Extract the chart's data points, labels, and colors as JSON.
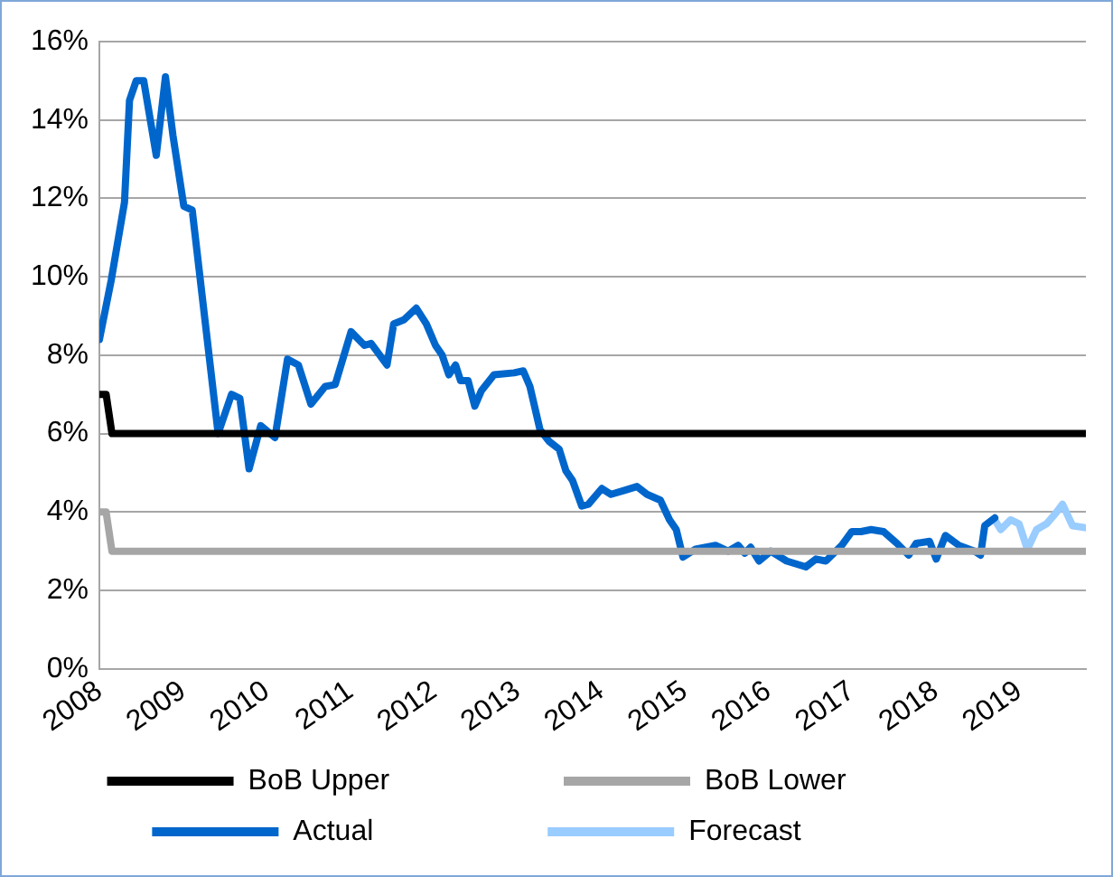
{
  "chart_data": {
    "type": "line",
    "xlim": [
      2008,
      2019.8
    ],
    "xticks": [
      2008,
      2009,
      2010,
      2011,
      2012,
      2013,
      2014,
      2015,
      2016,
      2017,
      2018,
      2019
    ],
    "ylim": [
      0,
      16
    ],
    "yticks": [
      {
        "value": 0,
        "label": "0%"
      },
      {
        "value": 2,
        "label": "2%"
      },
      {
        "value": 4,
        "label": "4%"
      },
      {
        "value": 6,
        "label": "6%"
      },
      {
        "value": 8,
        "label": "8%"
      },
      {
        "value": 10,
        "label": "10%"
      },
      {
        "value": 12,
        "label": "12%"
      },
      {
        "value": 14,
        "label": "14%"
      },
      {
        "value": 16,
        "label": "16%"
      }
    ],
    "grid": "y",
    "legend": "bottom",
    "marker": "none",
    "line_style": "solid",
    "series": [
      {
        "name": "BoB Upper",
        "color": "#000000",
        "x": [
          2008,
          2008.08,
          2008.15,
          2019.8
        ],
        "values": [
          7,
          7,
          6,
          6
        ]
      },
      {
        "name": "BoB Lower",
        "color": "#a6a6a6",
        "x": [
          2008,
          2008.08,
          2008.15,
          2019.8
        ],
        "values": [
          4,
          4,
          3,
          3
        ]
      },
      {
        "name": "Actual",
        "color": "#0066cc",
        "x": [
          2008,
          2008.14,
          2008.3,
          2008.36,
          2008.44,
          2008.53,
          2008.68,
          2008.79,
          2008.88,
          2009.01,
          2009.11,
          2009.42,
          2009.58,
          2009.68,
          2009.79,
          2009.93,
          2010.1,
          2010.25,
          2010.38,
          2010.53,
          2010.7,
          2010.82,
          2011.01,
          2011.17,
          2011.25,
          2011.44,
          2011.52,
          2011.64,
          2011.79,
          2011.91,
          2012.02,
          2012.1,
          2012.18,
          2012.26,
          2012.32,
          2012.41,
          2012.49,
          2012.57,
          2012.72,
          2012.96,
          2013.07,
          2013.15,
          2013.27,
          2013.38,
          2013.5,
          2013.58,
          2013.66,
          2013.77,
          2013.85,
          2014.01,
          2014.12,
          2014.28,
          2014.43,
          2014.55,
          2014.71,
          2014.82,
          2014.9,
          2014.98,
          2015.13,
          2015.37,
          2015.52,
          2015.64,
          2015.72,
          2015.79,
          2015.89,
          2016.03,
          2016.22,
          2016.45,
          2016.57,
          2016.69,
          2016.88,
          2017,
          2017.11,
          2017.23,
          2017.38,
          2017.54,
          2017.68,
          2017.77,
          2017.93,
          2018.01,
          2018.12,
          2018.28,
          2018.47,
          2018.54,
          2018.59,
          2018.71
        ],
        "values": [
          8.4,
          9.9,
          11.9,
          14.5,
          15,
          15,
          13.1,
          15.1,
          13.6,
          11.8,
          11.7,
          6,
          7,
          6.9,
          5.1,
          6.2,
          5.9,
          7.9,
          7.75,
          6.75,
          7.2,
          7.25,
          8.6,
          8.25,
          8.3,
          7.75,
          8.8,
          8.9,
          9.2,
          8.8,
          8.25,
          8,
          7.5,
          7.75,
          7.35,
          7.35,
          6.7,
          7.1,
          7.5,
          7.55,
          7.6,
          7.2,
          6.1,
          5.8,
          5.6,
          5.05,
          4.8,
          4.15,
          4.2,
          4.6,
          4.45,
          4.55,
          4.65,
          4.45,
          4.3,
          3.8,
          3.55,
          2.85,
          3.05,
          3.15,
          3,
          3.15,
          2.95,
          3.1,
          2.75,
          3,
          2.75,
          2.6,
          2.8,
          2.75,
          3.15,
          3.5,
          3.5,
          3.55,
          3.5,
          3.2,
          2.9,
          3.2,
          3.25,
          2.8,
          3.4,
          3.15,
          3,
          2.9,
          3.65,
          3.85
        ]
      },
      {
        "name": "Forecast",
        "color": "#99ccff",
        "x": [
          2018.71,
          2018.78,
          2018.9,
          2019,
          2019.1,
          2019.21,
          2019.33,
          2019.45,
          2019.52,
          2019.64,
          2019.79
        ],
        "values": [
          3.8,
          3.55,
          3.8,
          3.7,
          3.05,
          3.55,
          3.7,
          4,
          4.2,
          3.65,
          3.6
        ]
      }
    ]
  }
}
